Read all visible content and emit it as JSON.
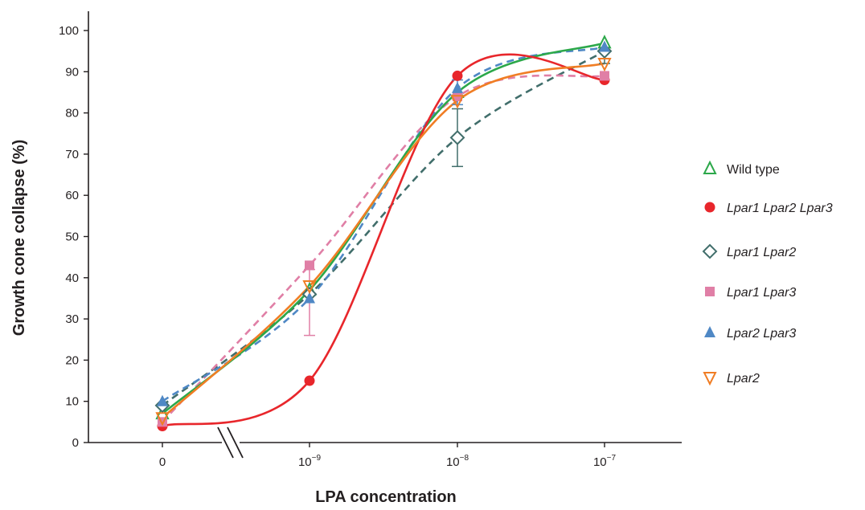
{
  "chart_data": {
    "type": "line",
    "ylabel": "Growth cone collapse (%)",
    "xlabel": "LPA concentration",
    "x_ticks": [
      {
        "base": "0",
        "exp": ""
      },
      {
        "base": "10",
        "exp": "−9"
      },
      {
        "base": "10",
        "exp": "−8"
      },
      {
        "base": "10",
        "exp": "−7"
      }
    ],
    "y_ticks": [
      "0",
      "10",
      "20",
      "30",
      "40",
      "50",
      "60",
      "70",
      "80",
      "90",
      "100"
    ],
    "ylim": [
      0,
      100
    ],
    "x_axis_break": true,
    "series": [
      {
        "name": "Wild type",
        "color": "#2ca84a",
        "marker": "triangle-up-open",
        "dash": "solid",
        "values": [
          7,
          37,
          85,
          97
        ]
      },
      {
        "name": "Lpar1 Lpar2 Lpar3",
        "color": "#e8262b",
        "marker": "circle-filled",
        "dash": "solid",
        "values": [
          4,
          15,
          89,
          88
        ]
      },
      {
        "name": "Lpar1 Lpar2",
        "color": "#416e6b",
        "marker": "diamond-open",
        "dash": "dashed",
        "values": [
          9,
          36,
          74,
          95
        ]
      },
      {
        "name": "Lpar1 Lpar3",
        "color": "#e07fa6",
        "marker": "square-filled",
        "dash": "dashed",
        "values": [
          5,
          43,
          84,
          89
        ]
      },
      {
        "name": "Lpar2 Lpar3",
        "color": "#4f88c5",
        "marker": "triangle-up-filled",
        "dash": "dashed",
        "values": [
          10,
          35,
          86,
          96
        ]
      },
      {
        "name": "Lpar2",
        "color": "#f07d24",
        "marker": "triangle-down-open",
        "dash": "solid",
        "values": [
          6,
          38,
          83,
          92
        ]
      }
    ]
  }
}
